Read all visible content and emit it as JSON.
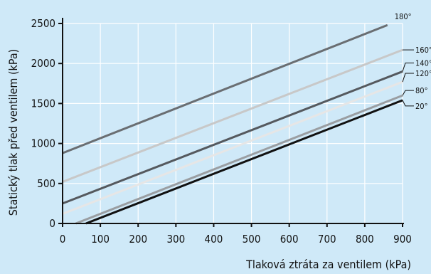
{
  "chart_data": {
    "type": "line",
    "xlabel": "Tlaková ztráta za ventilem (kPa)",
    "ylabel": "Statický tlak před ventilem (kPa)",
    "xlim": [
      0,
      900
    ],
    "ylim": [
      0,
      2500
    ],
    "x_ticks": [
      0,
      100,
      200,
      300,
      400,
      500,
      600,
      700,
      800,
      900
    ],
    "y_ticks": [
      0,
      500,
      1000,
      1500,
      2000,
      2500
    ],
    "x_tick_labels": [
      "0",
      "100",
      "200",
      "300",
      "400",
      "500",
      "600",
      "700",
      "800",
      "900"
    ],
    "y_tick_labels": [
      "0",
      "500",
      "1000",
      "1500",
      "2000",
      "2500"
    ],
    "grid": true,
    "colors": {
      "background": "#cfe9f8",
      "grid": "#ffffff",
      "axis": "#111111"
    },
    "series": [
      {
        "name": "180°",
        "color": "#6a6e72",
        "points": [
          [
            0,
            880
          ],
          [
            860,
            2480
          ]
        ]
      },
      {
        "name": "160°",
        "color": "#c8c8c8",
        "points": [
          [
            0,
            520
          ],
          [
            900,
            2170
          ]
        ]
      },
      {
        "name": "140°",
        "color": "#55595e",
        "points": [
          [
            0,
            250
          ],
          [
            900,
            1900
          ]
        ]
      },
      {
        "name": "120°",
        "color": "#e6e6e6",
        "points": [
          [
            0,
            120
          ],
          [
            900,
            1770
          ]
        ]
      },
      {
        "name": "80°",
        "color": "#9a9ea2",
        "points": [
          [
            35,
            0
          ],
          [
            900,
            1600
          ]
        ]
      },
      {
        "name": "20°",
        "color": "#111111",
        "points": [
          [
            62,
            0
          ],
          [
            900,
            1540
          ]
        ]
      }
    ]
  }
}
